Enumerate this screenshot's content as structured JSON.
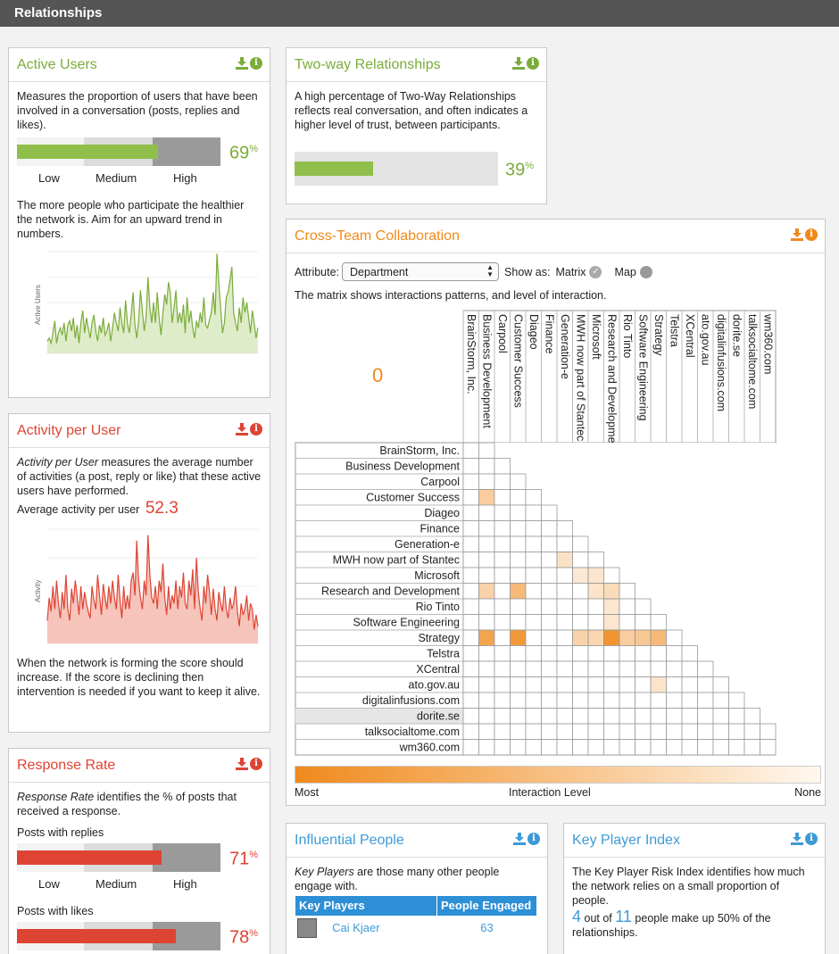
{
  "page": {
    "title": "Relationships"
  },
  "active_users": {
    "title": "Active Users",
    "desc": "Measures the proportion of users that have been involved in a conversation (posts, replies and likes).",
    "value": "69",
    "unit": "%",
    "level": 0.69,
    "labels": [
      "Low",
      "Medium",
      "High"
    ],
    "desc2": "The more people who participate the healthier the network is. Aim for an upward trend in numbers.",
    "ylabel": "Active Users",
    "color": "#7aac3a"
  },
  "two_way": {
    "title": "Two-way Relationships",
    "desc": "A high percentage of Two-Way Relationships reflects real conversation, and often indicates a higher level of trust, between participants.",
    "value": "39",
    "unit": "%",
    "level": 0.39
  },
  "activity": {
    "title": "Activity per User",
    "desc_em": "Activity per User",
    "desc_rest": " measures the average number of activities (a post, reply or like) that these active users have performed.",
    "avg_label": "Average activity per user",
    "avg_value": "52.3",
    "ylabel": "Activity",
    "desc2": "When the network is forming the score should increase. If the score is declining then intervention is needed if you want to keep it alive.",
    "color": "#dd4433"
  },
  "response": {
    "title": "Response Rate",
    "desc_em": "Response Rate",
    "desc_rest": " identifies the % of posts that received a response.",
    "replies_label": "Posts with replies",
    "replies_value": "71",
    "replies_level": 0.71,
    "labels": [
      "Low",
      "Medium",
      "High"
    ],
    "likes_label": "Posts with likes",
    "likes_value": "78",
    "likes_level": 0.78,
    "unit": "%"
  },
  "cross_team": {
    "title": "Cross-Team Collaboration",
    "attribute_label": "Attribute:",
    "attribute_value": "Department",
    "show_as": "Show as:",
    "matrix_label": "Matrix",
    "map_label": "Map",
    "desc": "The matrix shows interactions patterns, and level of interaction.",
    "count": "0",
    "teams": [
      "BrainStorm, Inc.",
      "Business Development",
      "Carpool",
      "Customer Success",
      "Diageo",
      "Finance",
      "Generation-e",
      "MWH now part of Stantec",
      "Microsoft",
      "Research and Development",
      "Rio Tinto",
      "Software Engineering",
      "Strategy",
      "Telstra",
      "XCentral",
      "ato.gov.au",
      "digitalinfusions.com",
      "dorite.se",
      "talksocialtome.com",
      "wm360.com"
    ],
    "highlighted_row": "dorite.se",
    "cells": [
      [
        3,
        1,
        0.35
      ],
      [
        7,
        6,
        0.15
      ],
      [
        8,
        7,
        0.08
      ],
      [
        8,
        8,
        0.1
      ],
      [
        9,
        1,
        0.3
      ],
      [
        9,
        3,
        0.55
      ],
      [
        9,
        8,
        0.12
      ],
      [
        9,
        9,
        0.2
      ],
      [
        10,
        9,
        0.1
      ],
      [
        11,
        9,
        0.1
      ],
      [
        12,
        1,
        0.75
      ],
      [
        12,
        3,
        0.85
      ],
      [
        12,
        7,
        0.3
      ],
      [
        12,
        8,
        0.25
      ],
      [
        12,
        9,
        0.9
      ],
      [
        12,
        10,
        0.35
      ],
      [
        12,
        11,
        0.4
      ],
      [
        12,
        12,
        0.55
      ],
      [
        15,
        12,
        0.12
      ]
    ],
    "legend_most": "Most",
    "legend_mid": "Interaction Level",
    "legend_none": "None"
  },
  "influential": {
    "title": "Influential People",
    "desc_em": "Key Players",
    "desc_rest": " are those many other people engage with.",
    "col1": "Key Players",
    "col2": "People Engaged",
    "rows": [
      {
        "name": "Cai Kjaer",
        "engaged": "63"
      }
    ]
  },
  "key_player": {
    "title": "Key Player Index",
    "desc": "The Key Player Risk Index identifies how much the network relies on a small proportion of people.",
    "num1": "4",
    "mid": " out of ",
    "num2": "11",
    "rest": " people make up 50% of the relationships."
  },
  "series": {
    "active_users": [
      0.12,
      0.15,
      0.1,
      0.2,
      0.32,
      0.1,
      0.2,
      0.25,
      0.18,
      0.3,
      0.12,
      0.28,
      0.32,
      0.22,
      0.35,
      0.15,
      0.28,
      0.1,
      0.3,
      0.42,
      0.2,
      0.35,
      0.25,
      0.15,
      0.3,
      0.38,
      0.22,
      0.12,
      0.28,
      0.2,
      0.35,
      0.18,
      0.22,
      0.3,
      0.12,
      0.25,
      0.4,
      0.3,
      0.22,
      0.45,
      0.3,
      0.2,
      0.52,
      0.3,
      0.2,
      0.38,
      0.6,
      0.28,
      0.15,
      0.32,
      0.62,
      0.42,
      0.22,
      0.36,
      0.75,
      0.45,
      0.3,
      0.5,
      0.3,
      0.6,
      0.35,
      0.18,
      0.4,
      0.58,
      0.48,
      0.7,
      0.6,
      0.3,
      0.45,
      0.62,
      0.3,
      0.4,
      0.3,
      0.48,
      0.2,
      0.55,
      0.3,
      0.42,
      0.25,
      0.15,
      0.32,
      0.25,
      0.4,
      0.3,
      0.55,
      0.28,
      0.25,
      0.33,
      0.4,
      0.6,
      0.38,
      0.98,
      0.7,
      0.45,
      0.2,
      0.3,
      0.55,
      0.6,
      0.72,
      0.85,
      0.4,
      0.3,
      0.22,
      0.45,
      0.3,
      0.55,
      0.4,
      0.5,
      0.35,
      0.2,
      0.42,
      0.3,
      0.15,
      0.25
    ],
    "activity": [
      0.2,
      0.4,
      0.28,
      0.5,
      0.3,
      0.55,
      0.35,
      0.22,
      0.45,
      0.3,
      0.6,
      0.3,
      0.2,
      0.48,
      0.35,
      0.55,
      0.42,
      0.25,
      0.5,
      0.3,
      0.45,
      0.35,
      0.28,
      0.22,
      0.5,
      0.38,
      0.3,
      0.6,
      0.42,
      0.25,
      0.52,
      0.4,
      0.3,
      0.5,
      0.35,
      0.55,
      0.4,
      0.3,
      0.6,
      0.38,
      0.22,
      0.5,
      0.3,
      0.42,
      0.3,
      0.55,
      0.62,
      0.42,
      0.9,
      0.55,
      0.4,
      0.3,
      0.55,
      0.42,
      0.95,
      0.6,
      0.4,
      0.35,
      0.5,
      0.3,
      0.55,
      0.45,
      0.7,
      0.4,
      0.25,
      0.5,
      0.3,
      0.42,
      0.35,
      0.55,
      0.3,
      0.5,
      0.4,
      0.62,
      0.35,
      0.3,
      0.55,
      0.42,
      0.65,
      0.3,
      0.75,
      0.45,
      0.3,
      0.2,
      0.5,
      0.35,
      0.6,
      0.45,
      0.25,
      0.48,
      0.3,
      0.2,
      0.45,
      0.35,
      0.28,
      0.5,
      0.3,
      0.22,
      0.4,
      0.3,
      0.35,
      0.5,
      0.28,
      0.15,
      0.35,
      0.25,
      0.3,
      0.42,
      0.2,
      0.35,
      0.3,
      0.12,
      0.25,
      0.15
    ]
  }
}
